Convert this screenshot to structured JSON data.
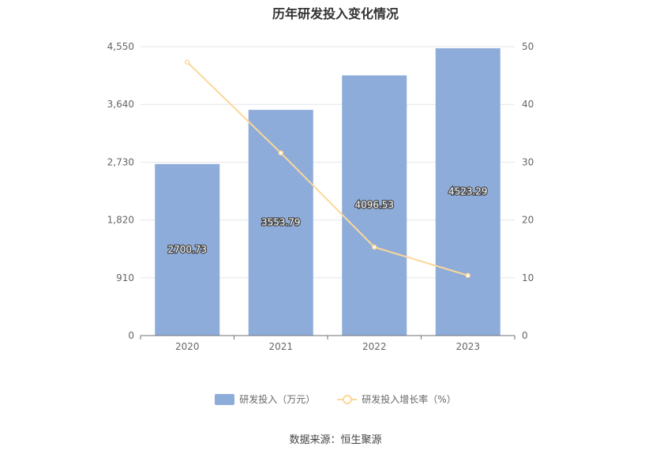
{
  "chart_data": {
    "type": "bar",
    "title": "历年研发投入变化情况",
    "categories": [
      "2020",
      "2021",
      "2022",
      "2023"
    ],
    "series": [
      {
        "name": "研发投入（万元）",
        "type": "bar",
        "axis": "left",
        "values": [
          2700.73,
          3553.79,
          4096.53,
          4523.29
        ],
        "labels": [
          "2700.73",
          "3553.79",
          "4096.53",
          "4523.29"
        ],
        "color": "#8eacd9"
      },
      {
        "name": "研发投入增长率（%）",
        "type": "line",
        "axis": "right",
        "values": [
          47.3,
          31.6,
          15.3,
          10.4
        ],
        "color": "#fbd799"
      }
    ],
    "y_left": {
      "min": 0,
      "max": 4550,
      "ticks": [
        "0",
        "910",
        "1,820",
        "2,730",
        "3,640",
        "4,550"
      ]
    },
    "y_right": {
      "min": 0,
      "max": 50,
      "ticks": [
        "0",
        "10",
        "20",
        "30",
        "40",
        "50"
      ]
    },
    "grid": true,
    "legend": "bottom",
    "source": "数据来源：恒生聚源"
  }
}
